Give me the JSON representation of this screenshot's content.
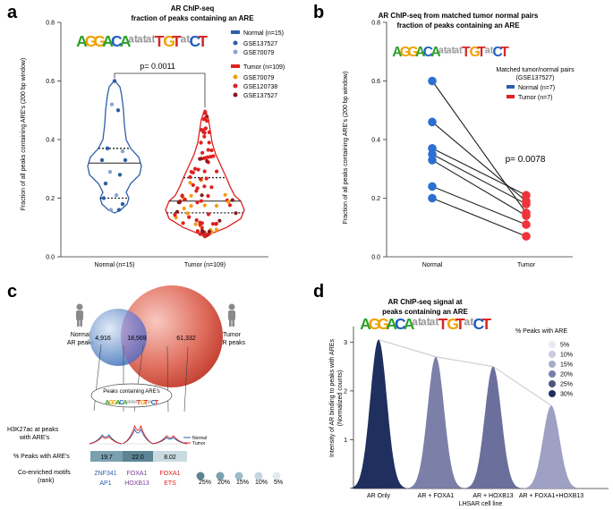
{
  "logo_text": "AGGACAnnnTGTnCT",
  "chart_data": [
    {
      "panel": "a",
      "type": "violin",
      "title": "AR ChIP-seq",
      "subtitle": "fraction of peaks containing an ARE",
      "ylabel": "Fraction of all peaks containing ARE's (200 bp window)",
      "ylim": [
        0,
        0.8
      ],
      "yticks": [
        "0.0",
        "0.2",
        "0.4",
        "0.6",
        "0.8"
      ],
      "categories": [
        "Normal (n=15)",
        "Tumor (n=109)"
      ],
      "pvalue": "p= 0.0011",
      "legend": {
        "normal_header": "Normal (n=15)",
        "normal_items": [
          "GSE137527",
          "GSE70079"
        ],
        "tumor_header": "Tumor (n=109)",
        "tumor_items": [
          "GSE70079",
          "GSE120738",
          "GSE137527"
        ]
      },
      "colors": {
        "normal": "#2c5fa8",
        "normal_light": "#8aa4d6",
        "tumor": "#e02020",
        "tumor_orange": "#f39c12",
        "tumor_dark": "#8b1a1a"
      },
      "normal": {
        "median": 0.32,
        "q1": 0.2,
        "q3": 0.37,
        "values": [
          0.6,
          0.52,
          0.5,
          0.37,
          0.36,
          0.33,
          0.33,
          0.29,
          0.28,
          0.25,
          0.21,
          0.2,
          0.18,
          0.16,
          0.16
        ]
      },
      "tumor": {
        "median": 0.19,
        "q1": 0.15,
        "q3": 0.27
      }
    },
    {
      "panel": "b",
      "type": "paired",
      "title": "AR ChIP-seq from matched tumor normal pairs",
      "subtitle": "fraction of peaks containing an ARE",
      "ylabel": "Fraction of all peaks containing ARE's (200 bp window)",
      "ylim": [
        0,
        0.8
      ],
      "yticks": [
        "0.0",
        "0.2",
        "0.4",
        "0.6",
        "0.8"
      ],
      "categories": [
        "Normal",
        "Tumor"
      ],
      "pvalue": "p= 0.0078",
      "legend": {
        "title_line1": "Matched tumor/normal pairs",
        "title_line2": "(GSE137527)",
        "items": [
          "Normal (n=7)",
          "Tumor (n=7)"
        ]
      },
      "pairs": [
        [
          0.6,
          0.15
        ],
        [
          0.46,
          0.19
        ],
        [
          0.37,
          0.21
        ],
        [
          0.35,
          0.18
        ],
        [
          0.33,
          0.14
        ],
        [
          0.24,
          0.11
        ],
        [
          0.2,
          0.07
        ]
      ]
    },
    {
      "panel": "c",
      "type": "venn",
      "normal_label": [
        "Normal",
        "AR peaks"
      ],
      "tumor_label": [
        "Tumor",
        "AR peaks"
      ],
      "counts": [
        "4,916",
        "18,569",
        "61,332"
      ],
      "peaks_box": "Peaks containing ARE's",
      "h3k27ac_label": [
        "H3K27ac at peaks",
        "with ARE's"
      ],
      "track_legend": [
        "Normal",
        "Tumor"
      ],
      "pct_label": "% Peaks with ARE's",
      "pct_values": [
        "19.7",
        "22.0",
        "8.02"
      ],
      "scale_labels": [
        "25%",
        "20%",
        "15%",
        "10%",
        "5%"
      ],
      "motif_label": [
        "Co-enriched motifs",
        "(rank)"
      ],
      "motifs": [
        [
          "ZNF341",
          "AP1"
        ],
        [
          "FOXA1",
          "HOXB13"
        ],
        [
          "FOXA1",
          "ETS"
        ]
      ]
    },
    {
      "panel": "d",
      "type": "area",
      "title": "AR ChIP-seq signal at",
      "subtitle": "peaks containing an ARE",
      "ylabel": "Intensity of AR binding to peaks with AREs",
      "ylabel2": "(Normalized counts)",
      "xlabel": "LHSAR cell line",
      "ylim": [
        0,
        3.3
      ],
      "yticks": [
        "1",
        "2",
        "3"
      ],
      "categories": [
        "AR Only",
        "AR + FOXA1",
        "AR + HOXB13",
        "AR + FOXA1+HOXB13"
      ],
      "values": [
        3.05,
        2.7,
        2.5,
        1.7
      ],
      "legend_title": "% Peaks with ARE",
      "legend_items": [
        "5%",
        "10%",
        "15%",
        "20%",
        "25%",
        "30%"
      ]
    }
  ]
}
